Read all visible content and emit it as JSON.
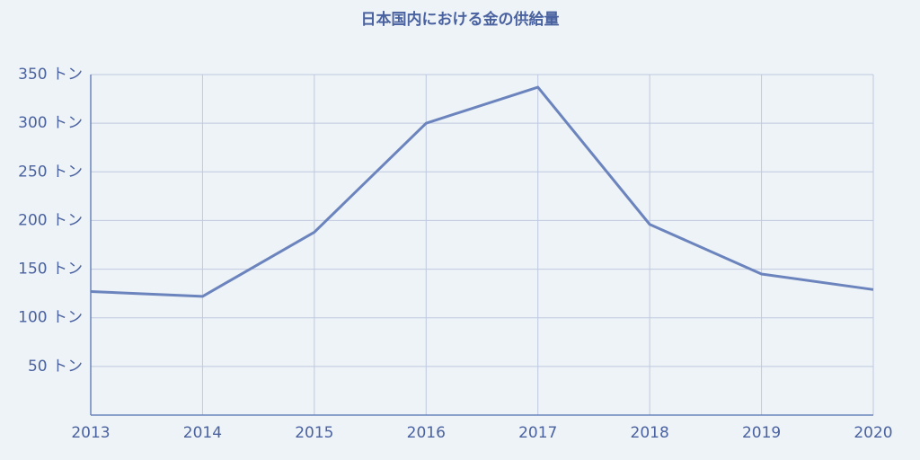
{
  "chart_data": {
    "type": "line",
    "title": "日本国内における金の供給量",
    "x": [
      2013,
      2014,
      2015,
      2016,
      2017,
      2018,
      2019,
      2020
    ],
    "values": [
      127,
      122,
      188,
      300,
      337,
      196,
      145,
      129
    ],
    "color": "#6b84bd",
    "xlim": [
      2013,
      2020
    ],
    "xticks": [
      2013,
      2014,
      2015,
      2016,
      2017,
      2018,
      2019,
      2020
    ],
    "ylim": [
      0,
      350
    ],
    "yticks": [
      {
        "value": 50,
        "label": "50 トン"
      },
      {
        "value": 100,
        "label": "100 トン"
      },
      {
        "value": 150,
        "label": "150 トン"
      },
      {
        "value": 200,
        "label": "200 トン"
      },
      {
        "value": 250,
        "label": "250 トン"
      },
      {
        "value": 300,
        "label": "300 トン"
      },
      {
        "value": 350,
        "label": "350 トン"
      }
    ],
    "grid": true
  }
}
